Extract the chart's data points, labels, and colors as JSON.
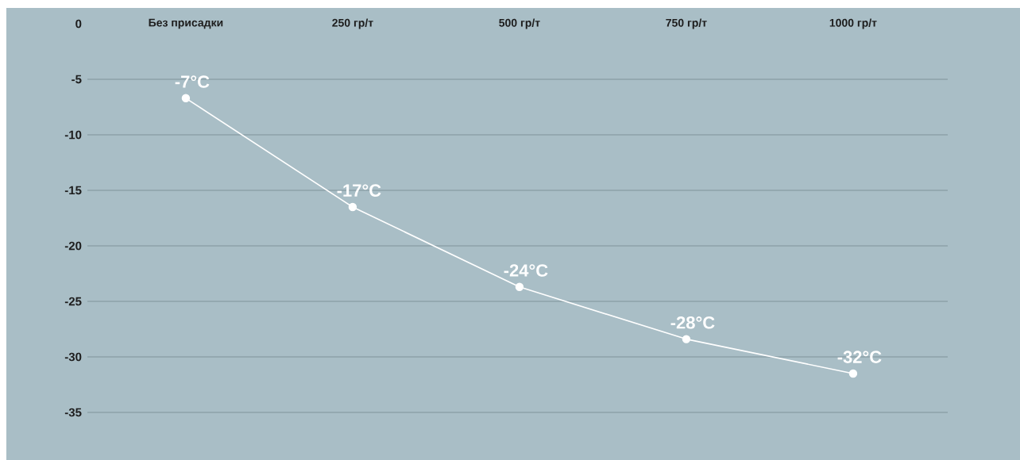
{
  "chart_data": {
    "type": "line",
    "categories": [
      "Без присадки",
      "250 гр/т",
      "500 гр/т",
      "750 гр/т",
      "1000 гр/т"
    ],
    "series": [
      {
        "color": "#ffffff",
        "values": [
          -6.7,
          -16.5,
          -23.7,
          -28.4,
          -31.5
        ],
        "value_labels": [
          "-7°C",
          "-17°C",
          "-24°C",
          "-28°C",
          "-32°C"
        ]
      }
    ],
    "ylim": [
      -35,
      0
    ],
    "yticks": [
      0,
      -5,
      -10,
      -15,
      -20,
      -25,
      -30,
      -35
    ],
    "grid": "y",
    "marker": "circle",
    "line_style": "solid"
  }
}
